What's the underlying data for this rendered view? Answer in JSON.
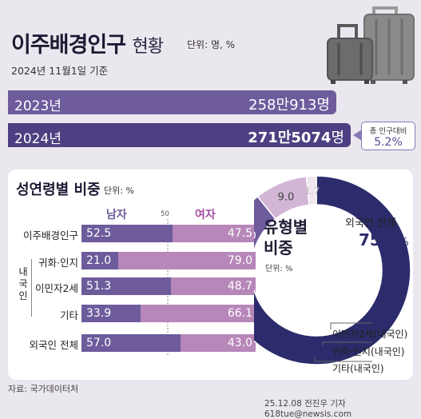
{
  "header": {
    "title": "이주배경인구",
    "subtitle": "현황",
    "unit": "단위: 명, %",
    "base_date": "2024년 11월1일 기준"
  },
  "totals": {
    "y2023": {
      "year": "2023년",
      "value_text": "258만913명",
      "value": 2580913
    },
    "y2024": {
      "year": "2024년",
      "value_bold": "271만5074",
      "value_suffix": "명",
      "value": 2715074
    },
    "ratio_label": "총 인구대비",
    "ratio_value": "5.2%"
  },
  "gender": {
    "title": "성연령별 비중",
    "unit": "단위: %",
    "male_header": "남자",
    "female_header": "여자",
    "mid_label": "50",
    "group_label": "내국인",
    "rows": [
      {
        "label": "이주배경인구",
        "male": 52.5,
        "female": 47.5,
        "male_text": "52.5",
        "female_text": "47.5"
      },
      {
        "label": "귀화·인지",
        "male": 21.0,
        "female": 79.0,
        "male_text": "21.0",
        "female_text": "79.0"
      },
      {
        "label": "이민자2세",
        "male": 51.3,
        "female": 48.7,
        "male_text": "51.3",
        "female_text": "48.7"
      },
      {
        "label": "기타",
        "male": 33.9,
        "female": 66.1,
        "male_text": "33.9",
        "female_text": "66.1"
      },
      {
        "label": "외국인 전체",
        "male": 57.0,
        "female": 43.0,
        "male_text": "57.0",
        "female_text": "43.0"
      }
    ]
  },
  "type_share": {
    "title1": "유형별",
    "title2": "비중",
    "unit": "단위: %",
    "all_label": "외국인 전체",
    "all_value": "75.2",
    "all_unit": "%",
    "slices": [
      {
        "label": "외국인 전체",
        "value": 75.2,
        "color": "#2c2c6c"
      },
      {
        "label": "이민자2세(내국인)",
        "value": 14.0,
        "text": "14.0",
        "color": "#6d5b9c"
      },
      {
        "label": "귀화·인지(내국인)",
        "value": 9.0,
        "text": "9.0",
        "color": "#d3b6d6"
      },
      {
        "label": "기타(내국인)",
        "value": 1.7,
        "text": "1.7",
        "color": "#efe6f0"
      }
    ]
  },
  "footer": {
    "source": "자료: 국가데이터처",
    "credit": "25.12.08 전진우 기자 618tue@newsis.com"
  },
  "colors": {
    "male": "#6d5b9c",
    "female": "#b787b9",
    "navy": "#2c2c6c"
  },
  "icons": [
    "suitcase-icon"
  ]
}
